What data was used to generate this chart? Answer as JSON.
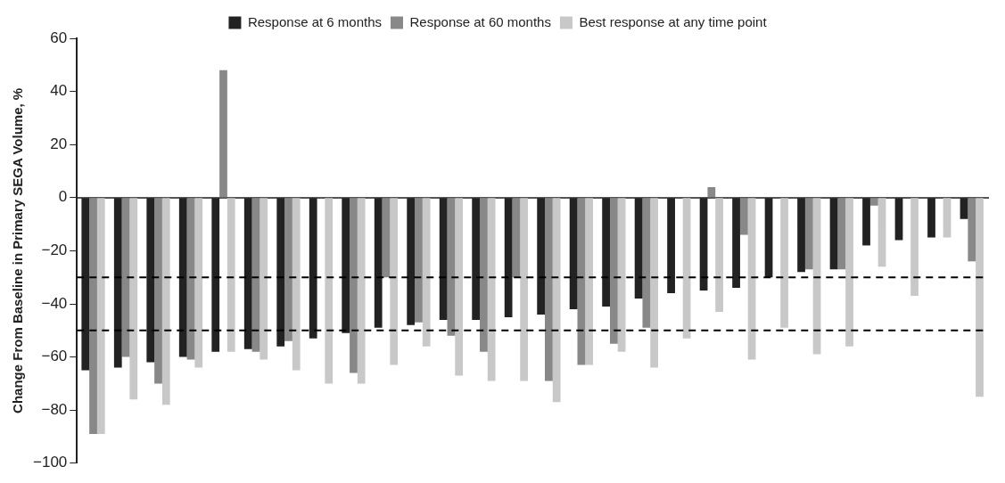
{
  "chart_data": {
    "type": "bar",
    "ylabel": "Change From Baseline in Primary SEGA Volume, %",
    "categories": [
      null,
      null,
      null,
      null,
      null,
      null,
      null,
      null,
      null,
      null,
      null,
      null,
      null,
      null,
      null,
      null,
      null,
      null,
      null,
      null,
      null,
      null,
      null,
      null,
      null,
      null,
      null,
      null
    ],
    "series": [
      {
        "name": "Response at 6 months",
        "color": "#222222",
        "values": [
          -65,
          -64,
          -62,
          -60,
          -58,
          -57,
          -56,
          -53,
          -51,
          -49,
          -48,
          -46,
          -46,
          -45,
          -44,
          -42,
          -41,
          -38,
          -36,
          -35,
          -34,
          -30,
          -28,
          -27,
          -18,
          -16,
          -15,
          -8
        ]
      },
      {
        "name": "Response at 60 months",
        "color": "#888888",
        "values": [
          -89,
          -60,
          -70,
          -61,
          48,
          -58,
          -54,
          null,
          -66,
          -30,
          -47,
          -52,
          -58,
          -30,
          -69,
          -63,
          -55,
          -49,
          null,
          4,
          -14,
          null,
          -27,
          -27,
          -3,
          null,
          null,
          -24
        ]
      },
      {
        "name": "Best response at any time point",
        "color": "#c8c8c8",
        "values": [
          -89,
          -76,
          -78,
          -64,
          -58,
          -61,
          -65,
          -70,
          -70,
          -63,
          -56,
          -67,
          -69,
          -69,
          -77,
          -63,
          -58,
          -64,
          -53,
          -43,
          -61,
          -49,
          -59,
          -56,
          -26,
          -37,
          -15,
          -75
        ]
      }
    ],
    "ylim": [
      -100,
      60
    ],
    "yticks": [
      {
        "value": -100,
        "label": "−100"
      },
      {
        "value": -80,
        "label": "−80"
      },
      {
        "value": -60,
        "label": "−60"
      },
      {
        "value": -40,
        "label": "−40"
      },
      {
        "value": -20,
        "label": "−20"
      },
      0,
      20,
      40,
      60
    ],
    "ref_lines": [
      {
        "axis": "y",
        "value": -30,
        "line_style": "dashed",
        "color": "#000000"
      },
      {
        "axis": "y",
        "value": -50,
        "line_style": "dashed",
        "color": "#000000"
      }
    ],
    "legend": "top",
    "tick_labels": "y"
  }
}
